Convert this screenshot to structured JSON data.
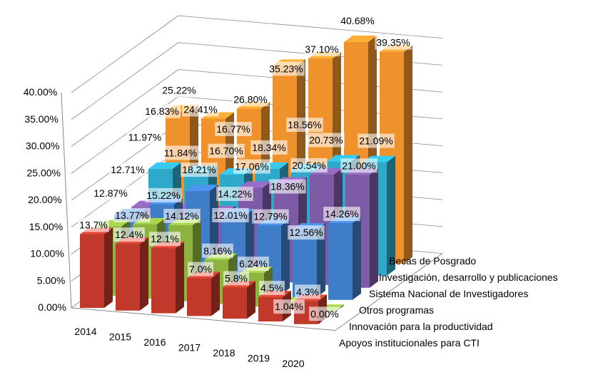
{
  "chart_data": {
    "type": "bar",
    "title": "",
    "categories": [
      "2014",
      "2015",
      "2016",
      "2017",
      "2018",
      "2019",
      "2020"
    ],
    "ylim": [
      0,
      40
    ],
    "yticks": [
      "0.00%",
      "5.00%",
      "10.00%",
      "15.00%",
      "20.00%",
      "25.00%",
      "30.00%",
      "35.00%",
      "40.00%"
    ],
    "series": [
      {
        "name": "Apoyos institucionales para CTI",
        "color": "#c0392b",
        "values": [
          13.7,
          12.4,
          12.1,
          7.0,
          5.8,
          4.5,
          4.3
        ],
        "labels": [
          "13.7%",
          "12.4%",
          "12.1%",
          "7.0%",
          "5.8%",
          "4.5%",
          "4.3%"
        ]
      },
      {
        "name": "Innovación para la productividad",
        "color": "#8db43e",
        "values": [
          12.87,
          13.77,
          14.12,
          8.16,
          6.24,
          1.04,
          0.0
        ],
        "labels": [
          "12.87%",
          "13.77%",
          "14.12%",
          "8.16%",
          "6.24%",
          "1.04%",
          "0.00%"
        ]
      },
      {
        "name": "Otros programas",
        "color": "#3f7dc8",
        "values": [
          12.71,
          15.22,
          18.21,
          14.22,
          12.79,
          12.56,
          14.26
        ],
        "labels": [
          "12.71%",
          "15.22%",
          "18.21%",
          "14.22%",
          "12.79%",
          "12.56%",
          "14.26%"
        ]
      },
      {
        "name": "Sistema Nacional de Investigadores",
        "color": "#7e5ba6",
        "values": [
          11.97,
          11.84,
          12.01,
          17.06,
          18.36,
          20.54,
          21.0
        ],
        "labels": [
          "11.97%",
          "11.84%",
          "12.01%",
          "17.06%",
          "18.36%",
          "20.54%",
          "21.00%"
        ]
      },
      {
        "name": "Investigación, desarrollo y publicaciones",
        "color": "#2fa9c9",
        "values": [
          16.83,
          16.7,
          16.77,
          18.34,
          18.56,
          20.73,
          21.09
        ],
        "labels": [
          "16.83%",
          "16.70%",
          "16.77%",
          "18.34%",
          "18.56%",
          "20.73%",
          "21.09%"
        ]
      },
      {
        "name": "Becas de Posgrado",
        "color": "#f0922b",
        "values": [
          25.22,
          24.41,
          26.8,
          35.23,
          37.1,
          40.68,
          39.35
        ],
        "labels": [
          "25.22%",
          "24.41%",
          "26.80%",
          "35.23%",
          "37.10%",
          "40.68%",
          "39.35%"
        ]
      }
    ]
  }
}
